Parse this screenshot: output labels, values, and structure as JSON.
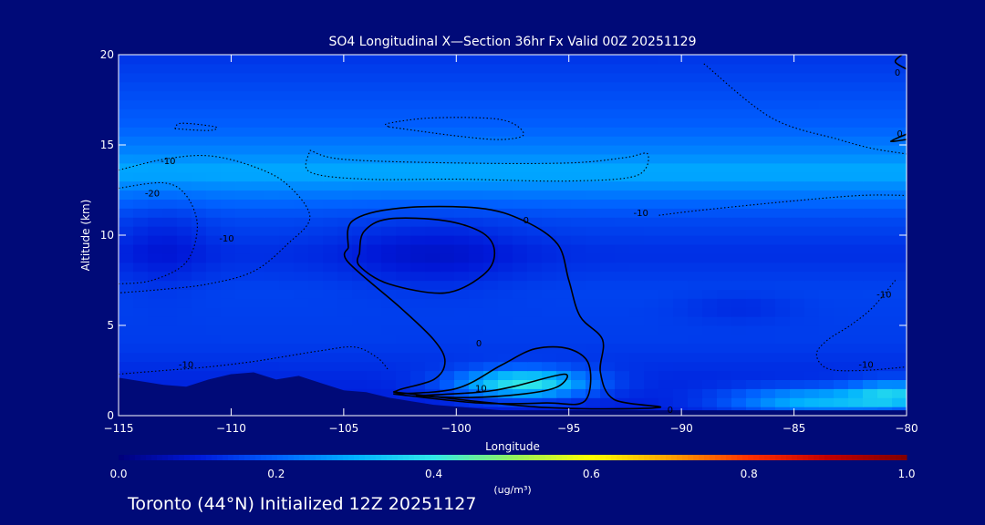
{
  "chart_data": {
    "type": "heatmap",
    "title": "SO4 Longitudinal X—Section 36hr  Fx Valid 00Z 20251129",
    "xlabel": "Longitude",
    "ylabel": "Altitude (km)",
    "xlim": [
      -115,
      -80
    ],
    "ylim": [
      0,
      20
    ],
    "x_ticks": [
      -115,
      -110,
      -105,
      -100,
      -95,
      -90,
      -85,
      -80
    ],
    "y_ticks": [
      0,
      5,
      10,
      15,
      20
    ],
    "x_tick_labels": [
      "−115",
      "−110",
      "−105",
      "−100",
      "−95",
      "−90",
      "−85",
      "−80"
    ],
    "y_tick_labels": [
      "0",
      "5",
      "10",
      "15",
      "20"
    ],
    "grid": false,
    "colorbar": {
      "min": 0.0,
      "max": 1.0,
      "tick_values": [
        0.0,
        0.2,
        0.4,
        0.6,
        0.8,
        1.0
      ],
      "tick_labels": [
        "0.0",
        "0.2",
        "0.4",
        "0.6",
        "0.8",
        "1.0"
      ],
      "unit_label": "(ug/m³)",
      "colors": [
        "#00007a",
        "#0018d8",
        "#0060ff",
        "#00b0ff",
        "#30e8e8",
        "#90f060",
        "#ffff00",
        "#ffa000",
        "#ff3000",
        "#c00000",
        "#800000"
      ]
    },
    "field": {
      "profile": [
        {
          "alt": 0,
          "value": 0.1
        },
        {
          "alt": 2,
          "value": 0.12
        },
        {
          "alt": 4,
          "value": 0.15
        },
        {
          "alt": 7,
          "value": 0.16
        },
        {
          "alt": 9,
          "value": 0.13
        },
        {
          "alt": 11,
          "value": 0.17
        },
        {
          "alt": 12.5,
          "value": 0.24
        },
        {
          "alt": 13.5,
          "value": 0.3
        },
        {
          "alt": 14.5,
          "value": 0.25
        },
        {
          "alt": 16,
          "value": 0.2
        },
        {
          "alt": 18,
          "value": 0.17
        },
        {
          "alt": 20,
          "value": 0.14
        }
      ],
      "blobs": [
        {
          "lon": -97,
          "alt": 1.8,
          "dlon": 3.0,
          "dalt": 0.8,
          "value": 0.28
        },
        {
          "lon": -84,
          "alt": 0.8,
          "dlon": 4.0,
          "dalt": 0.8,
          "value": 0.2
        },
        {
          "lon": -80.5,
          "alt": 1.2,
          "dlon": 2.0,
          "dalt": 0.8,
          "value": 0.18
        },
        {
          "lon": -101,
          "alt": 9.0,
          "dlon": 4.0,
          "dalt": 2.0,
          "value": -0.05
        },
        {
          "lon": -113,
          "alt": 9.5,
          "dlon": 2.0,
          "dalt": 2.5,
          "value": -0.04
        },
        {
          "lon": -87.5,
          "alt": 6.0,
          "dlon": 2.5,
          "dalt": 0.8,
          "value": -0.03
        }
      ]
    },
    "terrain": [
      [
        -115,
        2.1
      ],
      [
        -113,
        1.7
      ],
      [
        -112,
        1.6
      ],
      [
        -111,
        2.0
      ],
      [
        -110,
        2.3
      ],
      [
        -109,
        2.4
      ],
      [
        -108,
        2.0
      ],
      [
        -107,
        2.2
      ],
      [
        -106,
        1.8
      ],
      [
        -105,
        1.4
      ],
      [
        -104,
        1.3
      ],
      [
        -103,
        1.0
      ],
      [
        -102,
        0.8
      ],
      [
        -101,
        0.6
      ],
      [
        -100,
        0.5
      ],
      [
        -99,
        0.4
      ],
      [
        -98,
        0.3
      ],
      [
        -97,
        0.3
      ],
      [
        -95,
        0.3
      ],
      [
        -80,
        0.3
      ]
    ],
    "contours": [
      {
        "level": 0,
        "style": "solid",
        "points": [
          [
            -104.8,
            9.3
          ],
          [
            -104.6,
            10.8
          ],
          [
            -102.5,
            11.5
          ],
          [
            -99,
            11.5
          ],
          [
            -97,
            10.8
          ],
          [
            -95.5,
            9.5
          ],
          [
            -95,
            7.5
          ],
          [
            -94.5,
            5.5
          ],
          [
            -93.5,
            4.2
          ],
          [
            -93.6,
            2.4
          ],
          [
            -93.0,
            0.9
          ],
          [
            -91,
            0.45
          ],
          [
            -96,
            0.45
          ],
          [
            -102,
            1.2
          ],
          [
            -102.6,
            1.4
          ],
          [
            -101,
            2.0
          ],
          [
            -100.5,
            3.0
          ],
          [
            -101,
            4.2
          ],
          [
            -102.5,
            6.0
          ],
          [
            -104.8,
            8.5
          ],
          [
            -104.8,
            9.3
          ]
        ]
      },
      {
        "level": 0,
        "style": "solid",
        "points": [
          [
            -104.3,
            9.0
          ],
          [
            -104.1,
            10.2
          ],
          [
            -103,
            10.9
          ],
          [
            -100.5,
            10.8
          ],
          [
            -98.8,
            10.1
          ],
          [
            -98.3,
            9.0
          ],
          [
            -98.8,
            7.8
          ],
          [
            -100.5,
            6.8
          ],
          [
            -103,
            7.3
          ],
          [
            -104.3,
            8.3
          ],
          [
            -104.3,
            9.0
          ]
        ]
      },
      {
        "level": 10,
        "style": "solid",
        "points": [
          [
            -102.8,
            1.2
          ],
          [
            -100,
            1.5
          ],
          [
            -98,
            2.8
          ],
          [
            -96.5,
            3.7
          ],
          [
            -95,
            3.7
          ],
          [
            -94.1,
            2.8
          ],
          [
            -94.3,
            0.8
          ],
          [
            -96,
            0.7
          ],
          [
            -99,
            0.7
          ],
          [
            -102.8,
            1.2
          ]
        ]
      },
      {
        "level": 10,
        "style": "solid",
        "points": [
          [
            -101.8,
            1.1
          ],
          [
            -99,
            1.3
          ],
          [
            -97.5,
            1.6
          ],
          [
            -95.2,
            2.3
          ],
          [
            -95.5,
            1.6
          ],
          [
            -97,
            1.2
          ],
          [
            -99.5,
            1.0
          ],
          [
            -101.8,
            1.1
          ]
        ]
      },
      {
        "level": -10,
        "style": "dotted",
        "points": [
          [
            -112.5,
            15.9
          ],
          [
            -111,
            15.8
          ],
          [
            -110.7,
            16.0
          ],
          [
            -112.2,
            16.2
          ],
          [
            -112.5,
            15.9
          ]
        ]
      },
      {
        "level": -10,
        "style": "dotted",
        "points": [
          [
            -103,
            16.0
          ],
          [
            -100,
            15.5
          ],
          [
            -98,
            15.3
          ],
          [
            -97,
            15.6
          ],
          [
            -98,
            16.4
          ],
          [
            -101,
            16.5
          ],
          [
            -103,
            16.2
          ],
          [
            -103,
            16.0
          ]
        ]
      },
      {
        "level": -10,
        "style": "dotted",
        "points": [
          [
            -106.5,
            14.7
          ],
          [
            -105,
            14.2
          ],
          [
            -100,
            14.0
          ],
          [
            -95,
            14.0
          ],
          [
            -92.5,
            14.3
          ],
          [
            -91.5,
            14.5
          ],
          [
            -92,
            13.3
          ],
          [
            -95,
            13.0
          ],
          [
            -100,
            13.1
          ],
          [
            -104,
            13.1
          ],
          [
            -106.5,
            13.5
          ],
          [
            -106.5,
            14.7
          ]
        ]
      },
      {
        "level": -10,
        "style": "dotted",
        "points": [
          [
            -115,
            13.6
          ],
          [
            -113,
            14.2
          ],
          [
            -111,
            14.4
          ],
          [
            -109,
            13.8
          ],
          [
            -107.5,
            12.8
          ],
          [
            -106.5,
            11.0
          ],
          [
            -107.5,
            9.5
          ],
          [
            -109,
            8.0
          ],
          [
            -111,
            7.3
          ],
          [
            -113,
            7.0
          ],
          [
            -115,
            6.8
          ]
        ]
      },
      {
        "level": -10,
        "style": "dotted",
        "points": [
          [
            -89,
            19.5
          ],
          [
            -86,
            16.5
          ],
          [
            -83,
            15.3
          ],
          [
            -81.5,
            14.8
          ],
          [
            -80,
            14.5
          ]
        ]
      },
      {
        "level": -10,
        "style": "dotted",
        "points": [
          [
            -91,
            11.1
          ],
          [
            -89,
            11.4
          ],
          [
            -85,
            11.9
          ],
          [
            -82,
            12.2
          ],
          [
            -80,
            12.2
          ]
        ]
      },
      {
        "level": -10,
        "style": "dotted",
        "points": [
          [
            -80.5,
            7.5
          ],
          [
            -81.5,
            6.0
          ],
          [
            -82.5,
            5.0
          ],
          [
            -83.5,
            4.2
          ],
          [
            -84,
            3.4
          ],
          [
            -83.5,
            2.6
          ],
          [
            -82,
            2.5
          ],
          [
            -80,
            2.7
          ]
        ]
      },
      {
        "level": -10,
        "style": "dotted",
        "points": [
          [
            -115,
            2.3
          ],
          [
            -113,
            2.5
          ],
          [
            -111,
            2.7
          ],
          [
            -109,
            3.0
          ],
          [
            -107.5,
            3.3
          ],
          [
            -106,
            3.6
          ],
          [
            -104.5,
            3.8
          ],
          [
            -103.5,
            3.2
          ],
          [
            -103,
            2.5
          ]
        ]
      },
      {
        "level": -20,
        "style": "dotted",
        "points": [
          [
            -115,
            12.6
          ],
          [
            -113,
            12.9
          ],
          [
            -112,
            12.2
          ],
          [
            -111.5,
            10.5
          ],
          [
            -112,
            8.5
          ],
          [
            -113.5,
            7.5
          ],
          [
            -115,
            7.3
          ]
        ]
      },
      {
        "level": 0,
        "style": "solid",
        "points": [
          [
            -80,
            19.2
          ],
          [
            -80.5,
            19.6
          ],
          [
            -80.2,
            20
          ]
        ]
      },
      {
        "level": 0,
        "style": "solid",
        "points": [
          [
            -80,
            15.6
          ],
          [
            -80.7,
            15.2
          ],
          [
            -80,
            15.3
          ]
        ]
      }
    ],
    "contour_labels": [
      {
        "text": "-10",
        "lon": -112.8,
        "alt": 14.1
      },
      {
        "text": "-20",
        "lon": -113.5,
        "alt": 12.3
      },
      {
        "text": "-10",
        "lon": -110.2,
        "alt": 9.8
      },
      {
        "text": "-10",
        "lon": -112,
        "alt": 2.8
      },
      {
        "text": "0",
        "lon": -96.9,
        "alt": 10.8
      },
      {
        "text": "-10",
        "lon": -91.8,
        "alt": 11.2
      },
      {
        "text": "-10",
        "lon": -81,
        "alt": 6.7
      },
      {
        "text": "-10",
        "lon": -81.8,
        "alt": 2.8
      },
      {
        "text": "10",
        "lon": -98.9,
        "alt": 1.5
      },
      {
        "text": "0",
        "lon": -99,
        "alt": 4.0
      },
      {
        "text": "0",
        "lon": -90.5,
        "alt": 0.3
      },
      {
        "text": "0",
        "lon": -80.4,
        "alt": 19.0
      },
      {
        "text": "0",
        "lon": -80.3,
        "alt": 15.6
      }
    ]
  },
  "footer": {
    "text": "Toronto (44°N) Initialized 12Z 20251127"
  }
}
